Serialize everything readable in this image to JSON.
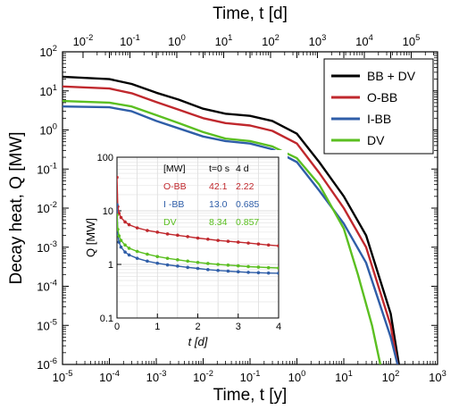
{
  "chart_data": [
    {
      "type": "line",
      "title": "",
      "xlabel": "Time, t [y]",
      "x2label": "Time, t [d]",
      "ylabel": "Decay heat, Q [MW]",
      "x_scale": "log",
      "y_scale": "log",
      "xlim": [
        1e-05,
        1000
      ],
      "ylim": [
        1e-06,
        100
      ],
      "x2lim_days": [
        0.00365,
        365000
      ],
      "x_tick_labels": [
        "10^-5",
        "10^-4",
        "10^-3",
        "10^-2",
        "10^-1",
        "10^0",
        "10^1",
        "10^2",
        "10^3"
      ],
      "x2_tick_labels": [
        "10^-2",
        "10^-1",
        "10^0",
        "10^1",
        "10^2",
        "10^3",
        "10^4",
        "10^5"
      ],
      "y_tick_labels": [
        "10^-6",
        "10^-5",
        "10^-4",
        "10^-3",
        "10^-2",
        "10^-1",
        "10^0",
        "10^1",
        "10^2"
      ],
      "grid": false,
      "legend_position": "top-right",
      "series": [
        {
          "name": "BB + DV",
          "color": "#000000",
          "x": [
            1e-05,
            0.0001,
            0.0003,
            0.001,
            0.003,
            0.01,
            0.03,
            0.1,
            0.3,
            1,
            3,
            10,
            30,
            100,
            150
          ],
          "y": [
            23,
            20,
            15,
            9,
            6,
            3.5,
            2.6,
            2.3,
            1.7,
            0.8,
            0.15,
            0.02,
            0.002,
            2e-05,
            1e-06
          ]
        },
        {
          "name": "O-BB",
          "color": "#c0282d",
          "x": [
            1e-05,
            0.0001,
            0.0003,
            0.001,
            0.003,
            0.01,
            0.03,
            0.1,
            0.3,
            1,
            3,
            10,
            30,
            100,
            140
          ],
          "y": [
            13,
            11.5,
            8.7,
            5.2,
            3.3,
            2,
            1.5,
            1.3,
            0.95,
            0.45,
            0.08,
            0.01,
            0.001,
            1e-05,
            1e-06
          ]
        },
        {
          "name": "I-BB",
          "color": "#2f5ea8",
          "x": [
            1e-05,
            0.0001,
            0.0003,
            0.001,
            0.003,
            0.01,
            0.03,
            0.1,
            0.3,
            1,
            3,
            10,
            30,
            100,
            140
          ],
          "y": [
            4,
            3.8,
            3,
            1.7,
            1.1,
            0.68,
            0.52,
            0.45,
            0.32,
            0.15,
            0.028,
            0.004,
            0.0004,
            5e-06,
            1e-06
          ]
        },
        {
          "name": "DV",
          "color": "#5bbf21",
          "x": [
            1e-05,
            0.0001,
            0.0003,
            0.001,
            0.003,
            0.01,
            0.03,
            0.1,
            0.3,
            1,
            3,
            10,
            20,
            40,
            60
          ],
          "y": [
            5.5,
            5,
            4,
            2.4,
            1.5,
            0.88,
            0.6,
            0.52,
            0.38,
            0.19,
            0.04,
            0.003,
            0.0002,
            1e-05,
            1e-06
          ]
        }
      ]
    },
    {
      "type": "line",
      "title": "",
      "xlabel": "t [d]",
      "ylabel": "Q [MW]",
      "x_scale": "linear",
      "y_scale": "log",
      "xlim": [
        0,
        4
      ],
      "ylim": [
        0.1,
        100
      ],
      "x_tick_labels": [
        "0",
        "1",
        "2",
        "3",
        "4"
      ],
      "y_tick_labels": [
        "0.1",
        "1",
        "10",
        "100"
      ],
      "grid": true,
      "series": [
        {
          "name": "O-BB",
          "color": "#c0282d",
          "x": [
            0,
            0.02,
            0.05,
            0.1,
            0.2,
            0.3,
            0.5,
            0.75,
            1,
            1.25,
            1.5,
            1.75,
            2,
            2.25,
            2.5,
            2.75,
            3,
            3.25,
            3.5,
            3.75,
            4
          ],
          "y": [
            42.1,
            12,
            9,
            7.5,
            6.2,
            5.5,
            4.8,
            4.3,
            4,
            3.7,
            3.5,
            3.3,
            3.1,
            2.95,
            2.8,
            2.7,
            2.6,
            2.5,
            2.4,
            2.3,
            2.22
          ]
        },
        {
          "name": "I-BB",
          "color": "#2f5ea8",
          "x": [
            0,
            0.02,
            0.05,
            0.1,
            0.2,
            0.3,
            0.5,
            0.75,
            1,
            1.25,
            1.5,
            1.75,
            2,
            2.25,
            2.5,
            2.75,
            3,
            3.25,
            3.5,
            3.75,
            4
          ],
          "y": [
            13,
            3.6,
            2.6,
            2.1,
            1.7,
            1.5,
            1.3,
            1.15,
            1.05,
            0.98,
            0.93,
            0.88,
            0.84,
            0.8,
            0.77,
            0.75,
            0.73,
            0.71,
            0.7,
            0.69,
            0.685
          ]
        },
        {
          "name": "DV",
          "color": "#5bbf21",
          "x": [
            0,
            0.02,
            0.05,
            0.1,
            0.2,
            0.3,
            0.5,
            0.75,
            1,
            1.25,
            1.5,
            1.75,
            2,
            2.25,
            2.5,
            2.75,
            3,
            3.25,
            3.5,
            3.75,
            4
          ],
          "y": [
            8.34,
            4.5,
            3.4,
            2.8,
            2.3,
            2.0,
            1.75,
            1.55,
            1.4,
            1.3,
            1.22,
            1.15,
            1.09,
            1.04,
            1.0,
            0.97,
            0.94,
            0.91,
            0.89,
            0.87,
            0.857
          ]
        }
      ],
      "table": {
        "header": [
          "[MW]",
          "t=0 s",
          "4 d"
        ],
        "rows": [
          {
            "label": "O-BB",
            "v0": "42.1",
            "v4": "2.22",
            "color": "#c0282d"
          },
          {
            "label": "I -BB",
            "v0": "13.0",
            "v4": "0.685",
            "color": "#2f5ea8"
          },
          {
            "label": "DV",
            "v0": "8.34",
            "v4": "0.857",
            "color": "#5bbf21"
          }
        ]
      }
    }
  ]
}
